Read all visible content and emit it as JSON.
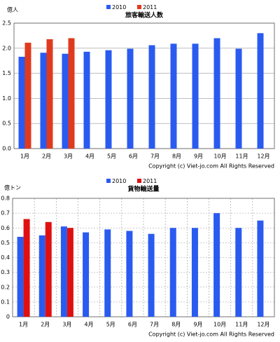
{
  "chart_data": [
    {
      "type": "bar",
      "title": "旅客輸送人数",
      "y_unit": "億人",
      "categories": [
        "1月",
        "2月",
        "3月",
        "4月",
        "5月",
        "6月",
        "7月",
        "8月",
        "9月",
        "10月",
        "11月",
        "12月"
      ],
      "series": [
        {
          "name": "2010",
          "color": "#2a5bf0",
          "values": [
            1.83,
            1.91,
            1.89,
            1.93,
            1.96,
            1.99,
            2.06,
            2.09,
            2.09,
            2.2,
            1.99,
            2.3
          ]
        },
        {
          "name": "2011",
          "color": "#e03a1e",
          "values": [
            2.11,
            2.18,
            2.2,
            null,
            null,
            null,
            null,
            null,
            null,
            null,
            null,
            null
          ]
        }
      ],
      "ylim": [
        0,
        2.5
      ],
      "yticks": [
        {
          "value": 0,
          "label": "0.0"
        },
        0.5,
        {
          "value": 1,
          "label": "1.0"
        },
        1.5,
        {
          "value": 2,
          "label": "2.0"
        },
        2.5
      ],
      "grid": true,
      "annotation": "Copyright (c) Viet-jo.com All Rights Reserved"
    },
    {
      "type": "bar",
      "title": "貨物輸送量",
      "y_unit": "億トン",
      "categories": [
        "1月",
        "2月",
        "3月",
        "4月",
        "5月",
        "6月",
        "7月",
        "8月",
        "9月",
        "10月",
        "11月",
        "12月"
      ],
      "series": [
        {
          "name": "2010",
          "color": "#2a5bf0",
          "values": [
            0.54,
            0.55,
            0.61,
            0.57,
            0.59,
            0.58,
            0.56,
            0.6,
            0.6,
            0.7,
            0.6,
            0.65
          ]
        },
        {
          "name": "2011",
          "color": "#e01010",
          "values": [
            0.66,
            0.64,
            0.6,
            null,
            null,
            null,
            null,
            null,
            null,
            null,
            null,
            null
          ]
        }
      ],
      "ylim": [
        0,
        0.8
      ],
      "yticks": [
        0,
        0.1,
        0.2,
        0.3,
        0.4,
        0.5,
        0.6,
        0.7,
        0.8
      ],
      "grid": true,
      "annotation": "Copyright (c) Viet-jo.com All Rights Reserved"
    }
  ]
}
